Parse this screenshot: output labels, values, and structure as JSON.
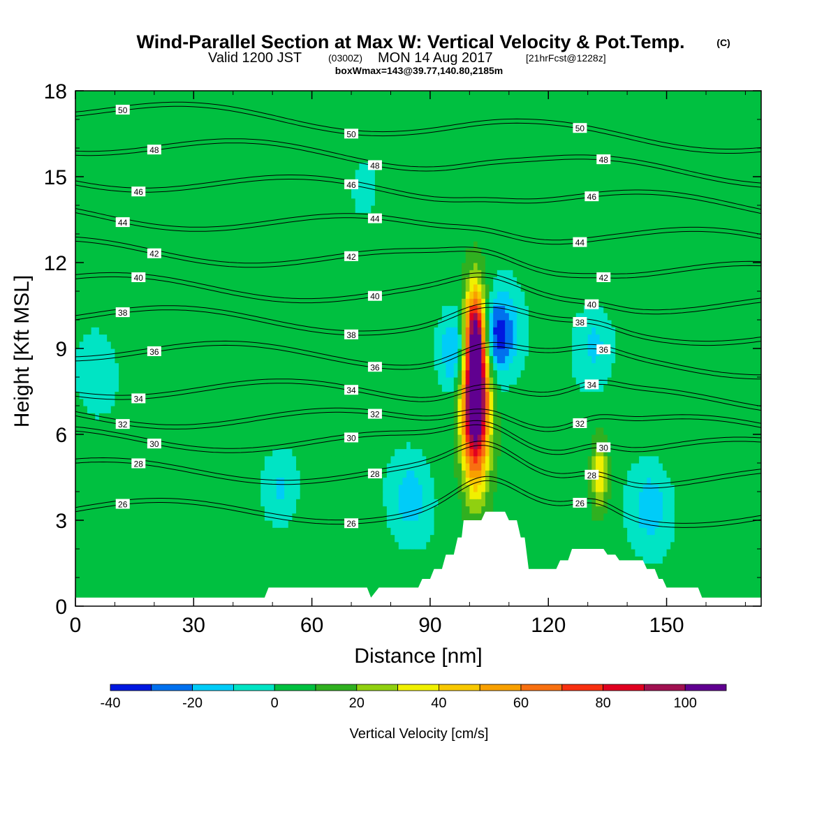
{
  "header": {
    "title": "Wind-Parallel Section at Max W: Vertical Velocity & Pot.Temp.",
    "copyright": "(C)",
    "valid_prefix": "Valid 1200 JST",
    "valid_utc": "(0300Z)",
    "valid_date": "MON 14 Aug 2017",
    "forecast": "[21hrFcst@1228z]",
    "box_info": "boxWmax=143@39.77,140.80,2185m"
  },
  "chart_data": {
    "type": "contour",
    "xlabel": "Distance [nm]",
    "ylabel": "Height [Kft MSL]",
    "xlim": [
      0,
      174
    ],
    "ylim": [
      0,
      18
    ],
    "x_ticks": [
      "0",
      "30",
      "60",
      "90",
      "120",
      "150"
    ],
    "y_ticks": [
      "0",
      "3",
      "6",
      "9",
      "12",
      "15",
      "18"
    ],
    "colorbar": {
      "label": "Vertical Velocity [cm/s]",
      "tick_labels": [
        "-40",
        "-20",
        "0",
        "20",
        "40",
        "60",
        "80",
        "100"
      ],
      "range": [
        -40,
        110
      ],
      "step": 10,
      "colors": [
        "#0018e0",
        "#0070ee",
        "#00ccf8",
        "#00e4c4",
        "#00c040",
        "#30b020",
        "#90d010",
        "#f0f000",
        "#f8c800",
        "#f8a000",
        "#f87010",
        "#f83010",
        "#e00020",
        "#a01050",
        "#600090"
      ]
    },
    "background_w": 5,
    "w_features": [
      {
        "x": 101.5,
        "z": 7.6,
        "max_w": 143
      },
      {
        "x": 101.5,
        "z": 9.6,
        "max_w": 50
      },
      {
        "x": 133,
        "z": 4.6,
        "max_w": 40
      },
      {
        "x": 107,
        "z": 9.5,
        "min_w": -38
      },
      {
        "x": 97,
        "z": 8.9,
        "min_w": -28
      },
      {
        "x": 52,
        "z": 4.2,
        "min_w": -14
      },
      {
        "x": 85,
        "z": 3.8,
        "min_w": -14
      },
      {
        "x": 132,
        "z": 9.2,
        "min_w": -12
      },
      {
        "x": 146,
        "z": 3.5,
        "min_w": -15
      },
      {
        "x": 73,
        "z": 14.5,
        "min_w": -5
      },
      {
        "x": 5,
        "z": 8,
        "min_w": -5
      }
    ],
    "theta_contours": [
      {
        "value": "26",
        "base_height": 3.3
      },
      {
        "value": "28",
        "base_height": 4.7
      },
      {
        "value": "30",
        "base_height": 5.8
      },
      {
        "value": "32",
        "base_height": 6.6
      },
      {
        "value": "34",
        "base_height": 7.6
      },
      {
        "value": "36",
        "base_height": 8.9
      },
      {
        "value": "38",
        "base_height": 10.1
      },
      {
        "value": "40",
        "base_height": 11.2
      },
      {
        "value": "42",
        "base_height": 12.4
      },
      {
        "value": "44",
        "base_height": 13.6
      },
      {
        "value": "46",
        "base_height": 14.9
      },
      {
        "value": "48",
        "base_height": 16.1
      },
      {
        "value": "50",
        "base_height": 17.3
      }
    ],
    "terrain": [
      [
        0,
        0.3
      ],
      [
        48,
        0.3
      ],
      [
        49,
        0.65
      ],
      [
        74,
        0.65
      ],
      [
        75,
        0.3
      ],
      [
        77,
        0.65
      ],
      [
        87,
        0.65
      ],
      [
        88,
        0.95
      ],
      [
        90,
        0.95
      ],
      [
        91,
        1.3
      ],
      [
        93,
        1.3
      ],
      [
        94,
        1.8
      ],
      [
        96,
        1.8
      ],
      [
        97,
        2.4
      ],
      [
        98,
        2.4
      ],
      [
        98.5,
        3.0
      ],
      [
        103,
        3.0
      ],
      [
        104,
        3.3
      ],
      [
        109,
        3.3
      ],
      [
        110,
        3.0
      ],
      [
        112,
        3.0
      ],
      [
        113,
        2.4
      ],
      [
        114,
        2.4
      ],
      [
        115,
        1.3
      ],
      [
        122,
        1.3
      ],
      [
        123,
        1.6
      ],
      [
        125,
        1.6
      ],
      [
        126,
        2.0
      ],
      [
        134,
        2.0
      ],
      [
        135,
        1.8
      ],
      [
        137,
        1.8
      ],
      [
        138,
        1.6
      ],
      [
        144,
        1.6
      ],
      [
        145,
        1.3
      ],
      [
        147,
        1.3
      ],
      [
        148,
        0.95
      ],
      [
        149,
        0.95
      ],
      [
        150,
        0.65
      ],
      [
        158,
        0.65
      ],
      [
        159,
        0.3
      ],
      [
        174,
        0.3
      ]
    ]
  }
}
